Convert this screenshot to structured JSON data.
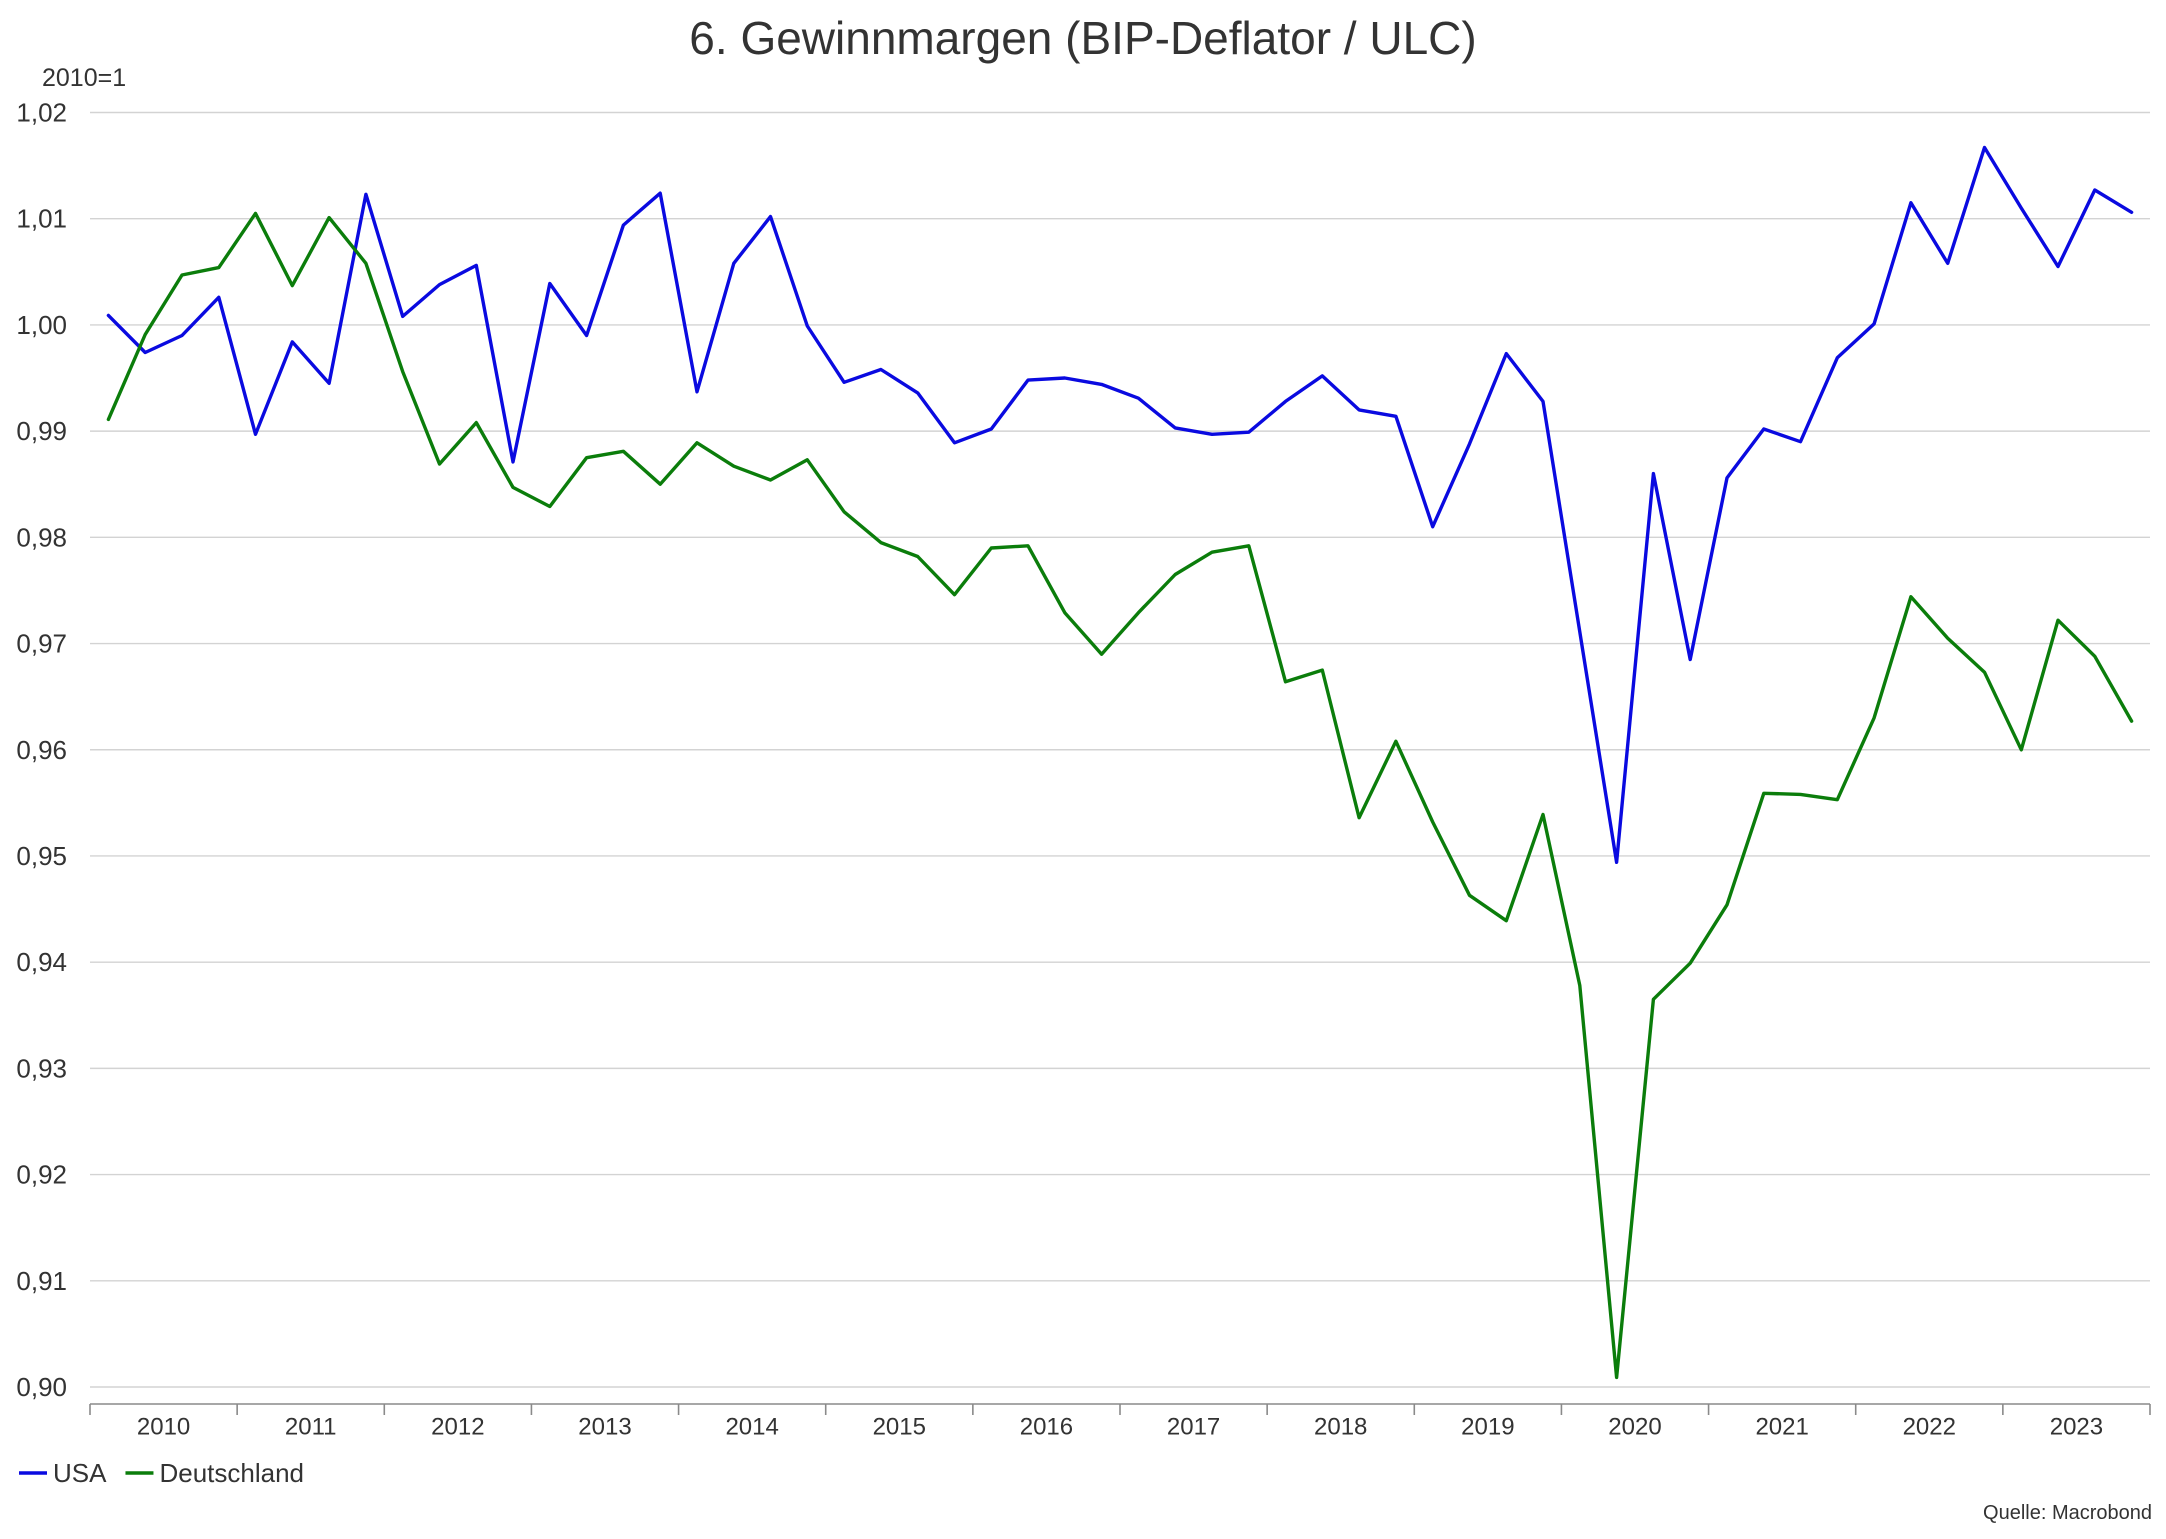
{
  "chart_data": {
    "type": "line",
    "title": "6. Gewinnmargen (BIP-Deflator / ULC)",
    "ylabel": "2010=1",
    "ylim": [
      0.9,
      1.02
    ],
    "yticks": [
      0.9,
      0.91,
      0.92,
      0.93,
      0.94,
      0.95,
      0.96,
      0.97,
      0.98,
      0.99,
      1.0,
      1.01,
      1.02
    ],
    "ytick_labels": [
      "0,90",
      "0,91",
      "0,92",
      "0,93",
      "0,94",
      "0,95",
      "0,96",
      "0,97",
      "0,98",
      "0,99",
      "1,00",
      "1,01",
      "1,02"
    ],
    "x_tick_labels": [
      "2010",
      "2011",
      "2012",
      "2013",
      "2014",
      "2015",
      "2016",
      "2017",
      "2018",
      "2019",
      "2020",
      "2021",
      "2022",
      "2023"
    ],
    "grid": "horizontal",
    "legend_position": "bottom-left",
    "source": "Quelle: Macrobond",
    "x": [
      "2010Q1",
      "2010Q2",
      "2010Q3",
      "2010Q4",
      "2011Q1",
      "2011Q2",
      "2011Q3",
      "2011Q4",
      "2012Q1",
      "2012Q2",
      "2012Q3",
      "2012Q4",
      "2013Q1",
      "2013Q2",
      "2013Q3",
      "2013Q4",
      "2014Q1",
      "2014Q2",
      "2014Q3",
      "2014Q4",
      "2015Q1",
      "2015Q2",
      "2015Q3",
      "2015Q4",
      "2016Q1",
      "2016Q2",
      "2016Q3",
      "2016Q4",
      "2017Q1",
      "2017Q2",
      "2017Q3",
      "2017Q4",
      "2018Q1",
      "2018Q2",
      "2018Q3",
      "2018Q4",
      "2019Q1",
      "2019Q2",
      "2019Q3",
      "2019Q4",
      "2020Q1",
      "2020Q2",
      "2020Q3",
      "2020Q4",
      "2021Q1",
      "2021Q2",
      "2021Q3",
      "2021Q4",
      "2022Q1",
      "2022Q2",
      "2022Q3",
      "2022Q4",
      "2023Q1",
      "2023Q2",
      "2023Q3",
      "2023Q4"
    ],
    "series": [
      {
        "name": "USA",
        "color": "#0a0ae0",
        "values": [
          1.0009,
          0.9974,
          0.999,
          1.0026,
          0.9897,
          0.9984,
          0.9945,
          1.0123,
          1.0008,
          1.0038,
          1.0056,
          0.9871,
          1.0039,
          0.999,
          1.0094,
          1.0124,
          0.9937,
          1.0058,
          1.0102,
          0.9999,
          0.9946,
          0.9958,
          0.9936,
          0.9889,
          0.9902,
          0.9948,
          0.995,
          0.9944,
          0.9931,
          0.9903,
          0.9897,
          0.9899,
          0.9928,
          0.9952,
          0.992,
          0.9914,
          0.981,
          0.9888,
          0.9973,
          0.9928,
          0.9711,
          0.9494,
          0.986,
          0.9685,
          0.9856,
          0.9902,
          0.989,
          0.9969,
          1.0001,
          1.0115,
          1.0058,
          1.0167,
          1.011,
          1.0055,
          1.0127,
          1.0106
        ]
      },
      {
        "name": "Deutschland",
        "color": "#0b7d0b",
        "values": [
          0.9911,
          0.9991,
          1.0047,
          1.0054,
          1.0105,
          1.0037,
          1.0101,
          1.0058,
          0.9956,
          0.9869,
          0.9908,
          0.9847,
          0.9829,
          0.9875,
          0.9881,
          0.985,
          0.9889,
          0.9867,
          0.9854,
          0.9873,
          0.9824,
          0.9795,
          0.9782,
          0.9746,
          0.979,
          0.9792,
          0.9729,
          0.969,
          0.9729,
          0.9765,
          0.9786,
          0.9792,
          0.9664,
          0.9675,
          0.9536,
          0.9608,
          0.9532,
          0.9463,
          0.9439,
          0.9539,
          0.9378,
          0.9009,
          0.9365,
          0.9399,
          0.9454,
          0.9559,
          0.9558,
          0.9553,
          0.963,
          0.9744,
          0.9705,
          0.9673,
          0.96,
          0.9722,
          0.9688,
          0.9627
        ]
      }
    ]
  }
}
